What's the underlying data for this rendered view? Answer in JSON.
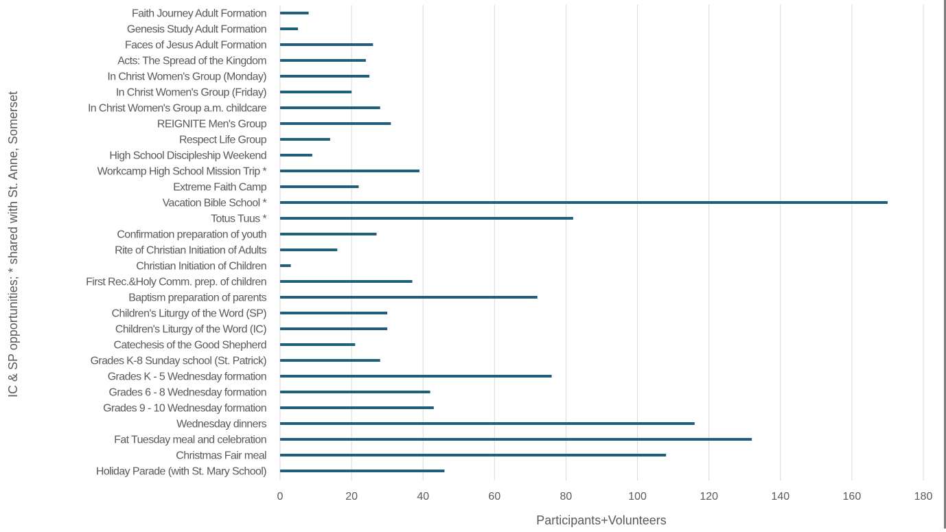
{
  "chart_data": {
    "type": "bar",
    "orientation": "horizontal",
    "title": "",
    "xlabel": "Participants+Volunteers",
    "ylabel": "IC & SP opportunities;  * shared with St. Anne, Somerset",
    "xlim": [
      0,
      180
    ],
    "xticks": [
      0,
      20,
      40,
      60,
      80,
      100,
      120,
      140,
      160,
      180
    ],
    "grid": "vertical",
    "legend": "none",
    "bar_color": "#1f5f7d",
    "categories": [
      "Faith Journey Adult Formation",
      "Genesis Study Adult Formation",
      "Faces of Jesus Adult Formation",
      "Acts:  The Spread of the Kingdom",
      "In Christ Women's Group (Monday)",
      "In Christ Women's Group (Friday)",
      "In Christ Women's Group a.m. childcare",
      "REIGNITE Men's Group",
      "Respect Life Group",
      "High School Discipleship Weekend",
      "Workcamp High School  Mission Trip *",
      "Extreme Faith Camp",
      "Vacation Bible School *",
      "Totus Tuus *",
      "Confirmation preparation of youth",
      "Rite of Christian Initiation of Adults",
      "Christian Initiation of Children",
      "First Rec.&Holy Comm. prep. of children",
      "Baptism preparation of parents",
      "Children's Liturgy of the Word (SP)",
      "Children's Liturgy of the Word (IC)",
      "Catechesis of the Good Shepherd",
      "Grades K-8 Sunday school (St. Patrick)",
      "Grades K - 5 Wednesday formation",
      "Grades 6 - 8 Wednesday formation",
      "Grades 9 - 10 Wednesday formation",
      "Wednesday dinners",
      "Fat Tuesday meal and celebration",
      "Christmas Fair meal",
      "Holiday Parade (with St. Mary School)"
    ],
    "values": [
      8,
      5,
      26,
      24,
      25,
      20,
      28,
      31,
      14,
      9,
      39,
      22,
      170,
      82,
      27,
      16,
      3,
      37,
      72,
      30,
      30,
      21,
      28,
      76,
      42,
      43,
      116,
      132,
      108,
      46
    ]
  }
}
